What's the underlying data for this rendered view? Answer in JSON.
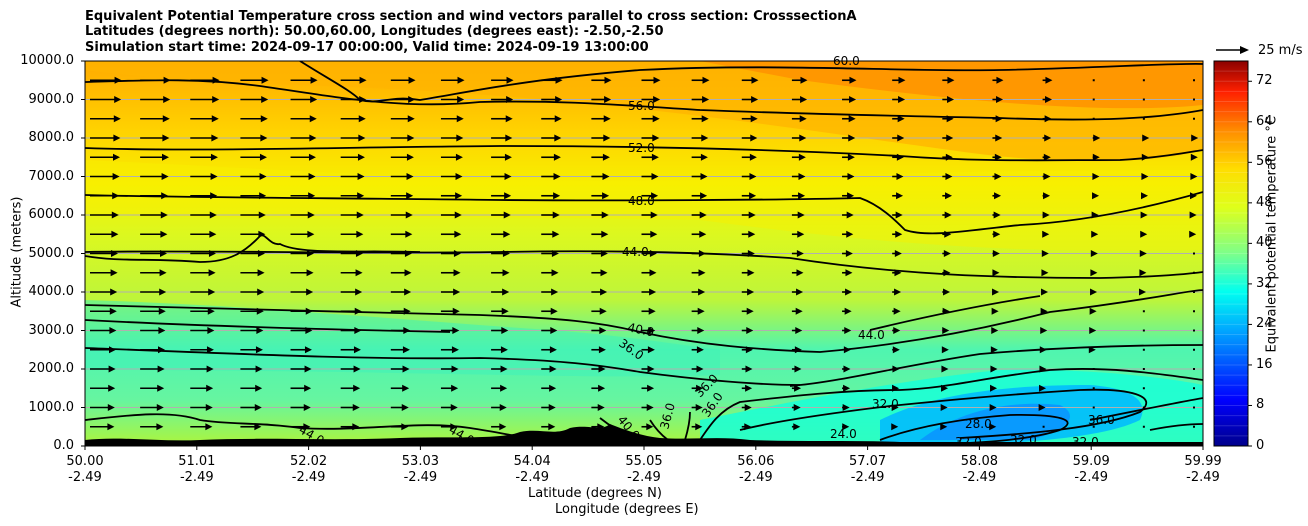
{
  "chart_data": {
    "type": "contour-cross-section",
    "title_lines": [
      "Equivalent Potential Temperature cross section and wind vectors parallel to cross section: CrosssectionA",
      "Latitudes (degrees north): 50.00,60.00, Longitudes (degrees east): -2.50,-2.50",
      "Simulation start time: 2024-09-17 00:00:00, Valid time: 2024-09-19 13:00:00"
    ],
    "ylabel": "Altitude (meters)",
    "xlabel_lat": "Latitude (degrees N)",
    "xlabel_lon": "Longitude (degrees E)",
    "ylim": [
      0,
      10000
    ],
    "yticks": [
      "0.0",
      "1000.0",
      "2000.0",
      "3000.0",
      "4000.0",
      "5000.0",
      "6000.0",
      "7000.0",
      "8000.0",
      "9000.0",
      "10000.0"
    ],
    "xticks_lat": [
      "50.00",
      "51.01",
      "52.02",
      "53.03",
      "54.04",
      "55.05",
      "56.06",
      "57.07",
      "58.08",
      "59.09",
      "59.99"
    ],
    "xticks_lon": [
      "-2.49",
      "-2.49",
      "-2.49",
      "-2.49",
      "-2.49",
      "-2.49",
      "-2.49",
      "-2.49",
      "-2.49",
      "-2.49",
      "-2.49"
    ],
    "colorbar_label": "Equivalent potential temperature °C",
    "colorbar_ticks": [
      "0",
      "8",
      "16",
      "24",
      "32",
      "40",
      "48",
      "56",
      "64",
      "72"
    ],
    "colorbar_range": [
      0,
      76
    ],
    "wind_key": "25 m/s",
    "contour_labels": [
      "60.0",
      "56.0",
      "52.0",
      "48.0",
      "44.0",
      "40.0",
      "36.0",
      "44.0",
      "36.0",
      "36.0",
      "32.0",
      "28.0",
      "24.0",
      "36.0",
      "32.0",
      "32.0",
      "32.0",
      "44.0",
      "44.0",
      "40.0",
      "36.0"
    ]
  }
}
